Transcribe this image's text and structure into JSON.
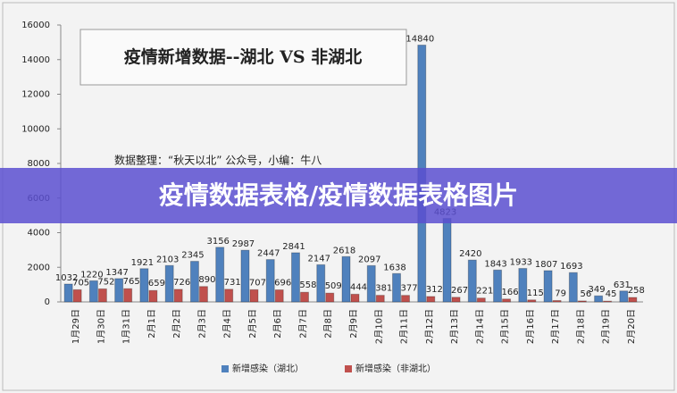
{
  "banner": "疫情数据表格/疫情数据表格图片",
  "chart_data": {
    "type": "bar",
    "title": "疫情新增数据--湖北 VS 非湖北",
    "annotation": "数据整理：“秋天以北” 公众号，小编：牛八",
    "categories": [
      "1月29日",
      "1月30日",
      "1月31日",
      "2月1日",
      "2月2日",
      "2月3日",
      "2月4日",
      "2月5日",
      "2月6日",
      "2月7日",
      "2月8日",
      "2月9日",
      "2月10日",
      "2月11日",
      "2月12日",
      "2月13日",
      "2月14日",
      "2月15日",
      "2月16日",
      "2月17日",
      "2月18日",
      "2月19日",
      "2月20日"
    ],
    "series": [
      {
        "name": "新增感染（湖北）",
        "color": "#4f81bd",
        "values": [
          1032,
          1220,
          1347,
          1921,
          2103,
          2345,
          3156,
          2987,
          2447,
          2841,
          2147,
          2618,
          2097,
          1638,
          14840,
          4823,
          2420,
          1843,
          1933,
          1807,
          1693,
          349,
          631
        ]
      },
      {
        "name": "新增感染（非湖北）",
        "color": "#c0504d",
        "values": [
          705,
          752,
          765,
          659,
          726,
          890,
          731,
          707,
          696,
          558,
          509,
          444,
          381,
          377,
          312,
          267,
          221,
          166,
          115,
          79,
          56,
          45,
          258
        ]
      }
    ],
    "ylim": [
      0,
      16000
    ],
    "yticks": [
      0,
      2000,
      4000,
      6000,
      8000,
      10000,
      12000,
      14000,
      16000
    ],
    "grid": false
  }
}
